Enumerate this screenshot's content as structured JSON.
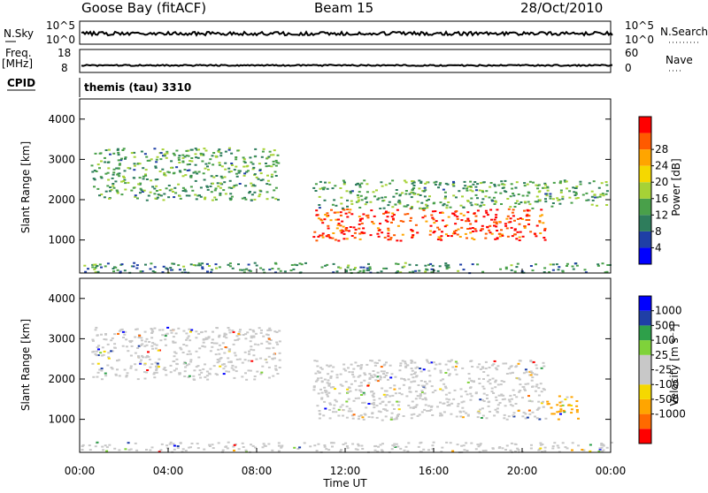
{
  "header": {
    "station": "Goose Bay (fitACF)",
    "beam": "Beam 15",
    "date": "28/Oct/2010"
  },
  "strips": {
    "nsky_label": "N.Sky",
    "nsky_ticks": [
      "10^5",
      "10^0"
    ],
    "nsearch_label": "N.Search",
    "nsearch_ticks": [
      "10^5",
      "10^0"
    ],
    "freq_label": "Freq.",
    "freq_unit": "[MHz]",
    "freq_ticks": [
      "18",
      "8"
    ],
    "nave_label": "Nave",
    "nave_ticks": [
      "60",
      "0"
    ],
    "cpid_label": "CPID",
    "cpid_text": "themis (tau) 3310"
  },
  "x_axis": {
    "label": "Time UT",
    "ticks": [
      "00:00",
      "04:00",
      "08:00",
      "12:00",
      "16:00",
      "20:00",
      "00:00"
    ]
  },
  "colors": {
    "power": [
      "#0000ff",
      "#1f3fa6",
      "#2e7d5c",
      "#49a04a",
      "#a6d236",
      "#f5d800",
      "#ffa500",
      "#ff5a00",
      "#ff0000"
    ],
    "velocity": [
      "#ff0000",
      "#ff6a00",
      "#ffa500",
      "#f5d800",
      "#c8c8c8",
      "#c8c8c8",
      "#7fd23a",
      "#2ea04a",
      "#1f3fa6",
      "#0000ff"
    ]
  },
  "chart_data": [
    {
      "type": "heatmap",
      "panel": "power",
      "xlabel": "",
      "ylabel": "Slant Range [km]",
      "xlim": [
        0,
        24
      ],
      "ylim": [
        180,
        4500
      ],
      "yticks": [
        1000,
        2000,
        3000,
        4000
      ],
      "colorbar": {
        "label": "Power [dB]",
        "ticks": [
          4,
          8,
          12,
          16,
          20,
          24,
          28
        ]
      },
      "regions": [
        {
          "x": [
            0.5,
            9.0
          ],
          "y": [
            2000,
            3300
          ],
          "value": 10
        },
        {
          "x": [
            10.5,
            21.0
          ],
          "y": [
            1000,
            1800
          ],
          "value": 26
        },
        {
          "x": [
            10.5,
            23.8
          ],
          "y": [
            1800,
            2500
          ],
          "value": 10
        },
        {
          "x": [
            0.0,
            24.0
          ],
          "y": [
            200,
            450
          ],
          "value": 8
        }
      ]
    },
    {
      "type": "heatmap",
      "panel": "velocity",
      "xlabel": "Time UT",
      "ylabel": "Slant Range [km]",
      "xlim": [
        0,
        24
      ],
      "ylim": [
        180,
        4500
      ],
      "yticks": [
        1000,
        2000,
        3000,
        4000
      ],
      "colorbar": {
        "label": "Velocity [m s⁻¹]",
        "ticks": [
          1000,
          500,
          100,
          25,
          -25,
          -100,
          -500,
          -1000
        ]
      },
      "regions": [
        {
          "x": [
            0.5,
            9.0
          ],
          "y": [
            2000,
            3300
          ],
          "value": 0
        },
        {
          "x": [
            10.5,
            21.0
          ],
          "y": [
            1000,
            2500
          ],
          "value": 0
        },
        {
          "x": [
            21.0,
            22.5
          ],
          "y": [
            1000,
            1600
          ],
          "value": -300
        },
        {
          "x": [
            0.0,
            24.0
          ],
          "y": [
            200,
            450
          ],
          "value": 0
        }
      ]
    }
  ]
}
